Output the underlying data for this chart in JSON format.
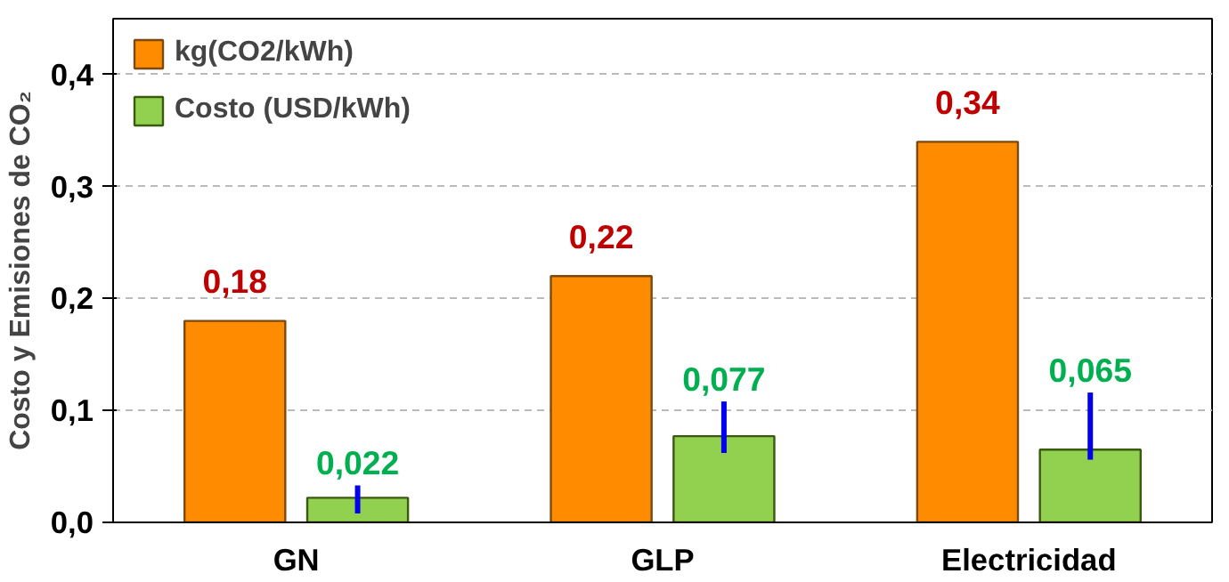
{
  "chart_data": {
    "type": "bar",
    "ylabel": "Costo y Emisiones de CO₂",
    "categories": [
      "GN",
      "GLP",
      "Electricidad"
    ],
    "series": [
      {
        "name": "kg(CO2/kWh)",
        "color": "#ff8c00",
        "values": [
          0.18,
          0.22,
          0.34
        ],
        "value_labels": [
          "0,18",
          "0,22",
          "0,34"
        ]
      },
      {
        "name": "Costo (USD/kWh)",
        "color": "#92d050",
        "values": [
          0.022,
          0.077,
          0.065
        ],
        "value_labels": [
          "0,022",
          "0,077",
          "0,065"
        ],
        "errors": [
          [
            0.008,
            0.033
          ],
          [
            0.062,
            0.108
          ],
          [
            0.056,
            0.116
          ]
        ]
      }
    ],
    "ylim": [
      0,
      0.45
    ],
    "yticks": [
      {
        "value": 0,
        "label": "0,0"
      },
      {
        "value": 0.1,
        "label": "0,1"
      },
      {
        "value": 0.2,
        "label": "0,2"
      },
      {
        "value": 0.3,
        "label": "0,3"
      },
      {
        "value": 0.4,
        "label": "0,4"
      }
    ],
    "grid": "y",
    "legend": "top left"
  }
}
